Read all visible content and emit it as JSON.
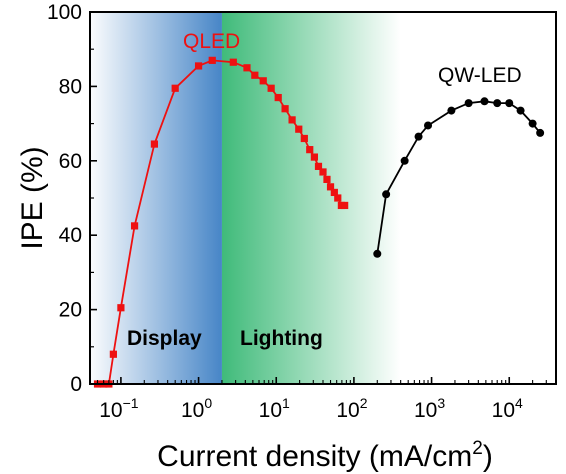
{
  "chart_data": {
    "type": "line",
    "title": "",
    "xlabel": "Current density (mA/cm",
    "xlabel_sup": "2",
    "xlabel_close": ")",
    "ylabel": "IPE (%)",
    "xscale": "log",
    "xlim": [
      0.04,
      40000
    ],
    "ylim": [
      0,
      100
    ],
    "xticks": [
      {
        "value": 0.1,
        "base": "10",
        "exp": "−1"
      },
      {
        "value": 1,
        "base": "10",
        "exp": "0"
      },
      {
        "value": 10,
        "base": "10",
        "exp": "1"
      },
      {
        "value": 100,
        "base": "10",
        "exp": "2"
      },
      {
        "value": 1000,
        "base": "10",
        "exp": "3"
      },
      {
        "value": 10000,
        "base": "10",
        "exp": "4"
      }
    ],
    "yticks": [
      {
        "value": 0,
        "label": "0"
      },
      {
        "value": 20,
        "label": "20"
      },
      {
        "value": 40,
        "label": "40"
      },
      {
        "value": 60,
        "label": "60"
      },
      {
        "value": 80,
        "label": "80"
      },
      {
        "value": 100,
        "label": "100"
      }
    ],
    "regions": [
      {
        "label": "Display",
        "from": 0.04,
        "to": 2,
        "color": "#3d7fc4"
      },
      {
        "label": "Lighting",
        "from": 2,
        "to": 400,
        "color": "#2ab36b"
      }
    ],
    "series": [
      {
        "name": "QLED",
        "color": "#ee1111",
        "marker": "square",
        "x": [
          0.05,
          0.06,
          0.07,
          0.08,
          0.1,
          0.15,
          0.27,
          0.5,
          1.0,
          1.5,
          2.8,
          4.2,
          5.3,
          6.8,
          8.6,
          10.6,
          13,
          16,
          19.5,
          23,
          27,
          31,
          35,
          40,
          45,
          50,
          56,
          62,
          69,
          76
        ],
        "y": [
          0,
          0,
          0,
          8,
          20.5,
          42.5,
          64.5,
          79.5,
          85.5,
          87,
          86.5,
          85,
          83,
          81.5,
          79.5,
          77,
          74,
          71,
          68.5,
          66,
          63,
          61,
          58.5,
          57,
          55,
          53,
          51.5,
          50,
          48,
          48
        ]
      },
      {
        "name": "QW-LED",
        "color": "#000000",
        "marker": "circle",
        "x": [
          200,
          260,
          450,
          680,
          900,
          1800,
          3000,
          4800,
          7000,
          10000,
          14000,
          20000,
          25000
        ],
        "y": [
          35,
          51,
          60,
          66.5,
          69.5,
          73.5,
          75.5,
          76,
          75.5,
          75.5,
          73.5,
          70,
          67.5
        ]
      }
    ]
  }
}
